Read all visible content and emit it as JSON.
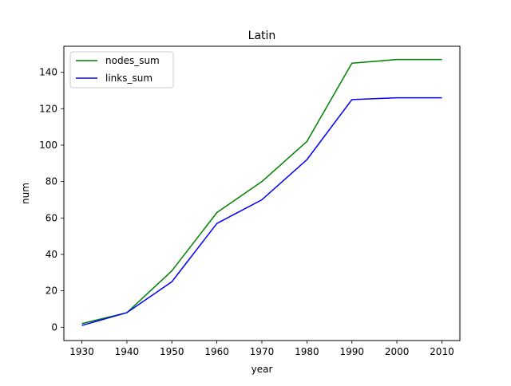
{
  "chart_data": {
    "type": "line",
    "title": "Latin",
    "xlabel": "year",
    "ylabel": "num",
    "x": [
      1930,
      1940,
      1950,
      1960,
      1970,
      1980,
      1990,
      2000,
      2010
    ],
    "series": [
      {
        "name": "nodes_sum",
        "color": "#008000",
        "values": [
          2,
          8,
          31,
          63,
          80,
          102,
          145,
          147,
          147
        ]
      },
      {
        "name": "links_sum",
        "color": "#0000ff",
        "values": [
          1,
          8,
          25,
          57,
          70,
          92,
          125,
          126,
          126
        ]
      }
    ],
    "xticks": [
      "1930",
      "1940",
      "1950",
      "1960",
      "1970",
      "1980",
      "1990",
      "2000",
      "2010"
    ],
    "yticks": [
      "0",
      "20",
      "40",
      "60",
      "80",
      "100",
      "120",
      "140"
    ],
    "xlim": [
      1926,
      2014
    ],
    "ylim": [
      -7.3,
      154.3
    ],
    "grid": false,
    "legend_position": "upper-left"
  }
}
